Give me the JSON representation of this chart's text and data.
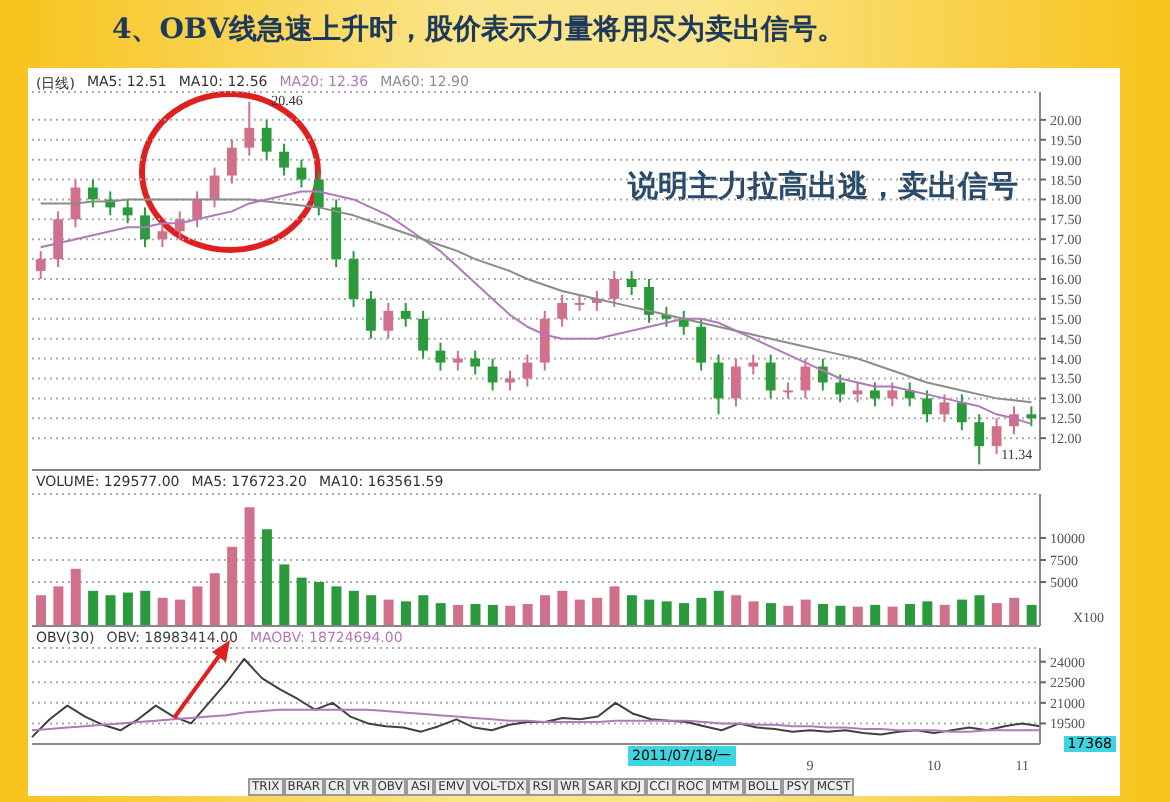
{
  "chart_data": [
    {
      "type": "candlestick",
      "title": "4、OBV线急速上升时，股价表示力量将用尽为卖出信号。",
      "subtitle": "(日线)",
      "categories": [
        null,
        null,
        null,
        null,
        null,
        null,
        null,
        null,
        null,
        null,
        null,
        null,
        null,
        null,
        null,
        null,
        null,
        null,
        null,
        null,
        null,
        null,
        null,
        null,
        null,
        null,
        null,
        null,
        null,
        null,
        null,
        null,
        null,
        null,
        null,
        null,
        null,
        null,
        null,
        null,
        null,
        null,
        null,
        null,
        null,
        null,
        null,
        null,
        null,
        null,
        null,
        null,
        null,
        null,
        null,
        null,
        null,
        null
      ],
      "ohlc": [
        [
          16.2,
          16.7,
          16.0,
          16.5
        ],
        [
          16.5,
          17.7,
          16.3,
          17.5
        ],
        [
          17.5,
          18.5,
          17.3,
          18.3
        ],
        [
          18.3,
          18.5,
          17.8,
          18.0
        ],
        [
          18.0,
          18.2,
          17.6,
          17.8
        ],
        [
          17.8,
          18.0,
          17.4,
          17.6
        ],
        [
          17.6,
          17.8,
          16.8,
          17.0
        ],
        [
          17.0,
          17.4,
          16.8,
          17.2
        ],
        [
          17.2,
          17.7,
          17.0,
          17.5
        ],
        [
          17.5,
          18.2,
          17.3,
          18.0
        ],
        [
          18.0,
          18.8,
          17.8,
          18.6
        ],
        [
          18.6,
          19.5,
          18.4,
          19.3
        ],
        [
          19.3,
          20.46,
          19.1,
          19.8
        ],
        [
          19.8,
          20.0,
          19.0,
          19.2
        ],
        [
          19.2,
          19.4,
          18.6,
          18.8
        ],
        [
          18.8,
          19.0,
          18.3,
          18.5
        ],
        [
          18.5,
          18.7,
          17.6,
          17.8
        ],
        [
          17.8,
          18.0,
          16.3,
          16.5
        ],
        [
          16.5,
          16.7,
          15.3,
          15.5
        ],
        [
          15.5,
          15.7,
          14.5,
          14.7
        ],
        [
          14.7,
          15.4,
          14.5,
          15.2
        ],
        [
          15.2,
          15.4,
          14.8,
          15.0
        ],
        [
          15.0,
          15.2,
          14.0,
          14.2
        ],
        [
          14.2,
          14.4,
          13.7,
          13.9
        ],
        [
          13.9,
          14.2,
          13.7,
          14.0
        ],
        [
          14.0,
          14.2,
          13.6,
          13.8
        ],
        [
          13.8,
          14.0,
          13.2,
          13.4
        ],
        [
          13.4,
          13.7,
          13.2,
          13.5
        ],
        [
          13.5,
          14.1,
          13.3,
          13.9
        ],
        [
          13.9,
          15.2,
          13.7,
          15.0
        ],
        [
          15.0,
          15.6,
          14.8,
          15.4
        ],
        [
          15.4,
          15.6,
          15.2,
          15.4
        ],
        [
          15.4,
          15.7,
          15.2,
          15.5
        ],
        [
          15.5,
          16.2,
          15.3,
          16.0
        ],
        [
          16.0,
          16.2,
          15.6,
          15.8
        ],
        [
          15.8,
          16.0,
          14.9,
          15.1
        ],
        [
          15.1,
          15.3,
          14.8,
          15.0
        ],
        [
          15.0,
          15.2,
          14.6,
          14.8
        ],
        [
          14.8,
          15.0,
          13.7,
          13.9
        ],
        [
          13.9,
          14.1,
          12.6,
          13.0
        ],
        [
          13.0,
          14.0,
          12.8,
          13.8
        ],
        [
          13.8,
          14.1,
          13.6,
          13.9
        ],
        [
          13.9,
          14.1,
          13.0,
          13.2
        ],
        [
          13.2,
          13.4,
          13.0,
          13.2
        ],
        [
          13.2,
          14.0,
          13.0,
          13.8
        ],
        [
          13.8,
          14.0,
          13.2,
          13.4
        ],
        [
          13.4,
          13.6,
          12.9,
          13.1
        ],
        [
          13.1,
          13.4,
          12.9,
          13.2
        ],
        [
          13.2,
          13.4,
          12.8,
          13.0
        ],
        [
          13.0,
          13.4,
          12.8,
          13.2
        ],
        [
          13.2,
          13.4,
          12.8,
          13.0
        ],
        [
          13.0,
          13.2,
          12.4,
          12.6
        ],
        [
          12.6,
          13.1,
          12.4,
          12.9
        ],
        [
          12.9,
          13.1,
          12.2,
          12.4
        ],
        [
          12.4,
          12.6,
          11.34,
          11.8
        ],
        [
          11.8,
          12.5,
          11.6,
          12.3
        ],
        [
          12.3,
          12.8,
          12.1,
          12.6
        ],
        [
          12.6,
          12.8,
          12.3,
          12.5
        ]
      ],
      "colors": [
        "#d0708a",
        "#d0708a",
        "#d0708a",
        "#2a9a3c",
        "#2a9a3c",
        "#2a9a3c",
        "#2a9a3c",
        "#d0708a",
        "#d0708a",
        "#d0708a",
        "#d0708a",
        "#d0708a",
        "#d0708a",
        "#2a9a3c",
        "#2a9a3c",
        "#2a9a3c",
        "#2a9a3c",
        "#2a9a3c",
        "#2a9a3c",
        "#2a9a3c",
        "#d0708a",
        "#2a9a3c",
        "#2a9a3c",
        "#2a9a3c",
        "#d0708a",
        "#2a9a3c",
        "#2a9a3c",
        "#d0708a",
        "#d0708a",
        "#d0708a",
        "#d0708a",
        "#d0708a",
        "#d0708a",
        "#d0708a",
        "#2a9a3c",
        "#2a9a3c",
        "#2a9a3c",
        "#2a9a3c",
        "#2a9a3c",
        "#2a9a3c",
        "#d0708a",
        "#d0708a",
        "#2a9a3c",
        "#d0708a",
        "#d0708a",
        "#2a9a3c",
        "#2a9a3c",
        "#d0708a",
        "#2a9a3c",
        "#d0708a",
        "#2a9a3c",
        "#2a9a3c",
        "#d0708a",
        "#2a9a3c",
        "#2a9a3c",
        "#d0708a",
        "#d0708a",
        "#2a9a3c"
      ],
      "series": [
        {
          "type": "line",
          "name": "MA20: 12.36",
          "color": "#b07ab8",
          "values": [
            16.8,
            16.9,
            17.0,
            17.1,
            17.2,
            17.3,
            17.3,
            17.4,
            17.4,
            17.5,
            17.6,
            17.7,
            17.9,
            18.0,
            18.1,
            18.2,
            18.2,
            18.1,
            18.0,
            17.8,
            17.6,
            17.3,
            17.0,
            16.7,
            16.3,
            15.9,
            15.5,
            15.1,
            14.8,
            14.6,
            14.5,
            14.5,
            14.5,
            14.6,
            14.7,
            14.8,
            14.9,
            15.0,
            15.0,
            14.9,
            14.7,
            14.5,
            14.3,
            14.1,
            13.9,
            13.7,
            13.5,
            13.4,
            13.3,
            13.3,
            13.2,
            13.1,
            13.0,
            12.9,
            12.8,
            12.6,
            12.5,
            12.36
          ]
        },
        {
          "type": "line",
          "name": "MA60: 12.90",
          "color": "#8c8c8c",
          "values": [
            17.9,
            17.9,
            17.9,
            17.95,
            17.95,
            18.0,
            18.0,
            18.0,
            18.0,
            18.0,
            18.0,
            18.0,
            18.0,
            17.95,
            17.9,
            17.85,
            17.8,
            17.7,
            17.6,
            17.45,
            17.3,
            17.15,
            17.0,
            16.85,
            16.7,
            16.5,
            16.35,
            16.2,
            16.0,
            15.85,
            15.7,
            15.6,
            15.5,
            15.4,
            15.3,
            15.2,
            15.1,
            15.0,
            14.9,
            14.8,
            14.7,
            14.6,
            14.5,
            14.4,
            14.3,
            14.2,
            14.1,
            14.0,
            13.85,
            13.7,
            13.55,
            13.4,
            13.3,
            13.2,
            13.1,
            13.0,
            12.95,
            12.9
          ]
        }
      ],
      "ylim": [
        11.2,
        20.7
      ],
      "yticks": [
        {
          "value": 12,
          "label": "12.00"
        },
        {
          "value": 12.5,
          "label": "12.50"
        },
        {
          "value": 13,
          "label": "13.00"
        },
        {
          "value": 13.5,
          "label": "13.50"
        },
        {
          "value": 14,
          "label": "14.00"
        },
        {
          "value": 14.5,
          "label": "14.50"
        },
        {
          "value": 15,
          "label": "15.00"
        },
        {
          "value": 15.5,
          "label": "15.50"
        },
        {
          "value": 16,
          "label": "16.00"
        },
        {
          "value": 16.5,
          "label": "16.50"
        },
        {
          "value": 17,
          "label": "17.00"
        },
        {
          "value": 17.5,
          "label": "17.50"
        },
        {
          "value": 18,
          "label": "18.00"
        },
        {
          "value": 18.5,
          "label": "18.50"
        },
        {
          "value": 19,
          "label": "19.00"
        },
        {
          "value": 19.5,
          "label": "19.50"
        },
        {
          "value": 20,
          "label": "20.00"
        }
      ],
      "annotations": [
        "MA5: 12.51",
        "MA10: 12.56",
        "20.46",
        "11.34",
        "说明主力拉高出逃，卖出信号"
      ],
      "grid": "y",
      "tick_labels": "y"
    },
    {
      "type": "bar",
      "ylabel": "X100",
      "categories": [
        null,
        null,
        null,
        null,
        null,
        null,
        null,
        null,
        null,
        null,
        null,
        null,
        null,
        null,
        null,
        null,
        null,
        null,
        null,
        null,
        null,
        null,
        null,
        null,
        null,
        null,
        null,
        null,
        null,
        null,
        null,
        null,
        null,
        null,
        null,
        null,
        null,
        null,
        null,
        null,
        null,
        null,
        null,
        null,
        null,
        null,
        null,
        null,
        null,
        null,
        null,
        null,
        null,
        null,
        null,
        null,
        null,
        null
      ],
      "series": [
        {
          "name": "VOLUME: 129577.00",
          "values": [
            3500,
            4500,
            6500,
            4000,
            3500,
            3800,
            4000,
            3200,
            3000,
            4500,
            6000,
            9000,
            13500,
            11000,
            7000,
            5500,
            5000,
            4500,
            4000,
            3500,
            3000,
            2800,
            3500,
            2600,
            2400,
            2500,
            2400,
            2300,
            2500,
            3500,
            4000,
            3000,
            3200,
            4500,
            3500,
            3000,
            2800,
            2600,
            3200,
            4000,
            3500,
            2800,
            2600,
            2300,
            3000,
            2500,
            2300,
            2200,
            2400,
            2200,
            2500,
            2800,
            2400,
            3000,
            3500,
            2600,
            3200,
            2400
          ],
          "colors": [
            "#d0708a",
            "#d0708a",
            "#d0708a",
            "#2a9a3c",
            "#2a9a3c",
            "#2a9a3c",
            "#2a9a3c",
            "#d0708a",
            "#d0708a",
            "#d0708a",
            "#d0708a",
            "#d0708a",
            "#d0708a",
            "#2a9a3c",
            "#2a9a3c",
            "#2a9a3c",
            "#2a9a3c",
            "#2a9a3c",
            "#2a9a3c",
            "#2a9a3c",
            "#d0708a",
            "#2a9a3c",
            "#2a9a3c",
            "#2a9a3c",
            "#d0708a",
            "#2a9a3c",
            "#2a9a3c",
            "#d0708a",
            "#d0708a",
            "#d0708a",
            "#d0708a",
            "#d0708a",
            "#d0708a",
            "#d0708a",
            "#2a9a3c",
            "#2a9a3c",
            "#2a9a3c",
            "#2a9a3c",
            "#2a9a3c",
            "#2a9a3c",
            "#d0708a",
            "#d0708a",
            "#2a9a3c",
            "#d0708a",
            "#d0708a",
            "#2a9a3c",
            "#2a9a3c",
            "#d0708a",
            "#2a9a3c",
            "#d0708a",
            "#2a9a3c",
            "#2a9a3c",
            "#d0708a",
            "#2a9a3c",
            "#2a9a3c",
            "#d0708a",
            "#d0708a",
            "#2a9a3c"
          ]
        }
      ],
      "ylim": [
        0,
        15000
      ],
      "yticks": [
        5000,
        7500,
        10000
      ],
      "annotations": [
        "MA5: 176723.20",
        "MA10: 163561.59"
      ],
      "grid": "y",
      "tick_labels": "y"
    },
    {
      "type": "line",
      "title": "OBV(30)",
      "categories": [
        null,
        null,
        null,
        null,
        null,
        null,
        null,
        null,
        null,
        null,
        null,
        null,
        null,
        null,
        null,
        null,
        null,
        null,
        null,
        null,
        null,
        null,
        null,
        null,
        null,
        null,
        null,
        null,
        null,
        null,
        null,
        null,
        null,
        null,
        null,
        null,
        null,
        null,
        null,
        null,
        null,
        null,
        null,
        null,
        "9",
        null,
        null,
        null,
        null,
        null,
        null,
        "10",
        null,
        null,
        null,
        null,
        "11",
        null
      ],
      "series": [
        {
          "name": "OBV: 18983414.00",
          "color": "#404040",
          "values": [
            18500,
            19800,
            20800,
            20000,
            19400,
            19000,
            19800,
            20800,
            20000,
            19500,
            21000,
            22500,
            24200,
            22800,
            22000,
            21300,
            20500,
            21000,
            20000,
            19500,
            19300,
            19200,
            18900,
            19300,
            19800,
            19200,
            19000,
            19400,
            19600,
            19600,
            19900,
            19800,
            20000,
            21000,
            20200,
            19800,
            19700,
            19600,
            19300,
            19000,
            19500,
            19200,
            19100,
            18900,
            19000,
            18900,
            19000,
            18800,
            18700,
            18900,
            19000,
            18800,
            19000,
            19200,
            19000,
            19300,
            19500,
            19300
          ]
        },
        {
          "name": "MAOBV: 18724694.00",
          "color": "#b07ab8",
          "values": [
            19000,
            19100,
            19200,
            19300,
            19400,
            19500,
            19600,
            19700,
            19800,
            19900,
            20000,
            20100,
            20300,
            20400,
            20500,
            20500,
            20500,
            20500,
            20500,
            20500,
            20400,
            20300,
            20200,
            20100,
            20000,
            19900,
            19800,
            19700,
            19700,
            19600,
            19600,
            19600,
            19600,
            19700,
            19700,
            19700,
            19700,
            19700,
            19600,
            19500,
            19500,
            19400,
            19400,
            19300,
            19300,
            19200,
            19200,
            19100,
            19100,
            19000,
            19000,
            19000,
            18900,
            18900,
            19000,
            19000,
            19000,
            19000
          ]
        }
      ],
      "ylim": [
        18000,
        25000
      ],
      "yticks": [
        19500,
        21000,
        22500,
        24000
      ],
      "annotations": [
        "17368",
        "2011/07/18/一",
        "TRIX",
        "BRAR",
        "CR",
        "VR",
        "OBV",
        "ASI",
        "EMV",
        "VOL-TDX",
        "RSI",
        "WR",
        "SAR",
        "KDJ",
        "CCI",
        "ROC",
        "MTM",
        "BOLL",
        "PSY",
        "MCST"
      ],
      "grid": "y"
    }
  ]
}
